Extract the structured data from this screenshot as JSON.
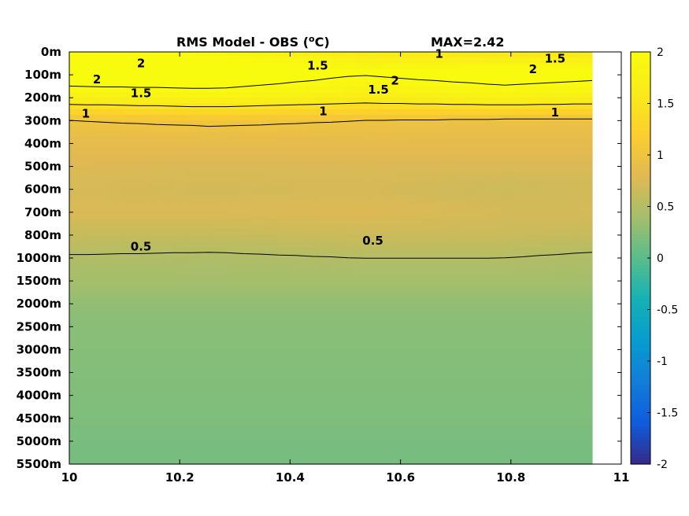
{
  "chart_data": {
    "type": "heatmap",
    "title": "RMS Model - OBS (",
    "title_unit_sup": "o",
    "title_unit_end": "C)",
    "max_label": "MAX=2.42",
    "x": [
      10,
      10.263,
      10.526,
      10.789,
      10.95
    ],
    "xlim": [
      10,
      11
    ],
    "x_ticks": [
      "10",
      "10.2",
      "10.4",
      "10.6",
      "10.8",
      "11"
    ],
    "y_levels": [
      "0m",
      "100m",
      "200m",
      "300m",
      "400m",
      "500m",
      "600m",
      "700m",
      "800m",
      "1000m",
      "1500m",
      "2000m",
      "2500m",
      "3000m",
      "3500m",
      "4000m",
      "4500m",
      "5000m",
      "5500m"
    ],
    "z": [
      [
        2.1,
        1.9,
        1.6,
        1.5,
        1.55
      ],
      [
        2.3,
        2.3,
        2.0,
        2.2,
        2.1
      ],
      [
        1.7,
        1.8,
        1.65,
        1.75,
        1.7
      ],
      [
        1.0,
        1.05,
        1.0,
        0.95,
        0.95
      ],
      [
        0.85,
        0.85,
        0.85,
        0.85,
        0.85
      ],
      [
        0.78,
        0.75,
        0.76,
        0.75,
        0.75
      ],
      [
        0.72,
        0.7,
        0.72,
        0.66,
        0.7
      ],
      [
        0.75,
        0.75,
        0.78,
        0.72,
        0.72
      ],
      [
        0.62,
        0.62,
        0.66,
        0.64,
        0.62
      ],
      [
        0.48,
        0.46,
        0.5,
        0.5,
        0.46
      ],
      [
        0.4,
        0.4,
        0.4,
        0.4,
        0.4
      ],
      [
        0.3,
        0.3,
        0.3,
        0.3,
        0.3
      ],
      [
        0.25,
        0.25,
        0.25,
        0.25,
        0.25
      ],
      [
        0.24,
        0.24,
        0.24,
        0.24,
        0.24
      ],
      [
        0.22,
        0.22,
        0.22,
        0.22,
        0.22
      ],
      [
        0.21,
        0.21,
        0.21,
        0.21,
        0.21
      ],
      [
        0.2,
        0.2,
        0.2,
        0.2,
        0.2
      ],
      [
        0.17,
        0.17,
        0.17,
        0.17,
        0.17
      ],
      [
        0.15,
        0.15,
        0.15,
        0.15,
        0.15
      ]
    ],
    "contour_labels": [
      {
        "text": "2",
        "x": 10.13,
        "y": 0.5
      },
      {
        "text": "2",
        "x": 10.05,
        "y": 1.2
      },
      {
        "text": "1.5",
        "x": 10.13,
        "y": 1.8
      },
      {
        "text": "1",
        "x": 10.03,
        "y": 2.7
      },
      {
        "text": "1.5",
        "x": 10.45,
        "y": 0.6
      },
      {
        "text": "1",
        "x": 10.67,
        "y": 0.08
      },
      {
        "text": "1.5",
        "x": 10.88,
        "y": 0.3
      },
      {
        "text": "2",
        "x": 10.84,
        "y": 0.75
      },
      {
        "text": "2",
        "x": 10.59,
        "y": 1.25
      },
      {
        "text": "1.5",
        "x": 10.56,
        "y": 1.65
      },
      {
        "text": "1",
        "x": 10.46,
        "y": 2.6
      },
      {
        "text": "1",
        "x": 10.88,
        "y": 2.65
      },
      {
        "text": "0.5",
        "x": 10.13,
        "y": 8.5
      },
      {
        "text": "0.5",
        "x": 10.55,
        "y": 8.25
      }
    ],
    "contour_levels": [
      0.5,
      1,
      1.5,
      2
    ],
    "colorbar": {
      "ticks": [
        "-2",
        "-1.5",
        "-1",
        "-0.5",
        "0",
        "0.5",
        "1",
        "1.5",
        "2"
      ],
      "range": [
        -2,
        2
      ],
      "colormap": "parula"
    },
    "grid": false
  }
}
